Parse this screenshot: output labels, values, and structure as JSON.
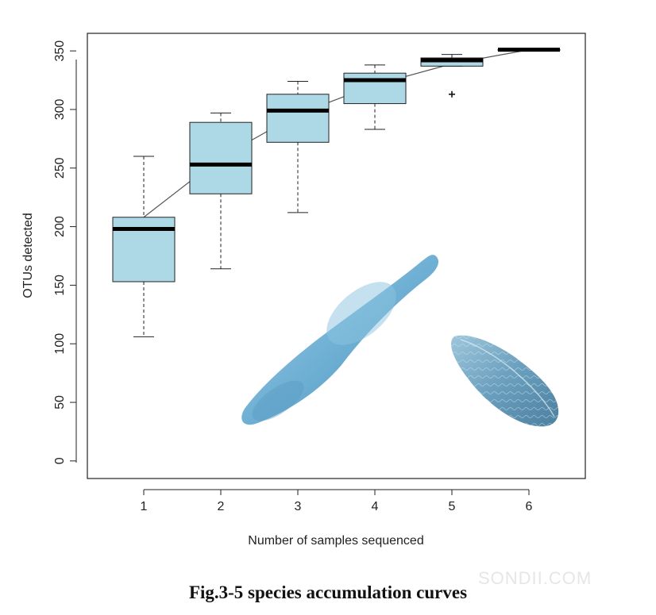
{
  "chart_data": {
    "type": "box",
    "xlabel": "Number of samples sequenced",
    "ylabel": "OTUs detected",
    "categories": [
      "1",
      "2",
      "3",
      "4",
      "5",
      "6"
    ],
    "ylim": [
      -15,
      365
    ],
    "yticks": [
      "0",
      "50",
      "100",
      "150",
      "200",
      "250",
      "300",
      "350"
    ],
    "boxes": [
      {
        "x": "1",
        "whisker_low": 106,
        "q1": 153,
        "median": 198,
        "q3": 208,
        "whisker_high": 260,
        "outliers": []
      },
      {
        "x": "2",
        "whisker_low": 164,
        "q1": 228,
        "median": 253,
        "q3": 289,
        "whisker_high": 297,
        "outliers": []
      },
      {
        "x": "3",
        "whisker_low": 212,
        "q1": 272,
        "median": 299,
        "q3": 313,
        "whisker_high": 324,
        "outliers": []
      },
      {
        "x": "4",
        "whisker_low": 283,
        "q1": 305,
        "median": 325,
        "q3": 331,
        "whisker_high": 338,
        "outliers": []
      },
      {
        "x": "5",
        "whisker_low": 337,
        "q1": 337,
        "median": 342,
        "q3": 344,
        "whisker_high": 347,
        "outliers": [
          313
        ]
      },
      {
        "x": "6",
        "whisker_low": 351,
        "q1": 351,
        "median": 351,
        "q3": 351,
        "whisker_high": 351,
        "outliers": []
      }
    ],
    "mean_curve": [
      208,
      259,
      296,
      321,
      339,
      351
    ],
    "box_color": "#add8e6",
    "grid": false
  },
  "caption": "Fig.3-5 species accumulation curves",
  "watermark": "SONDII.COM",
  "icons": [
    "diatom-cell-illustration",
    "diatom-cell-sem-illustration"
  ]
}
